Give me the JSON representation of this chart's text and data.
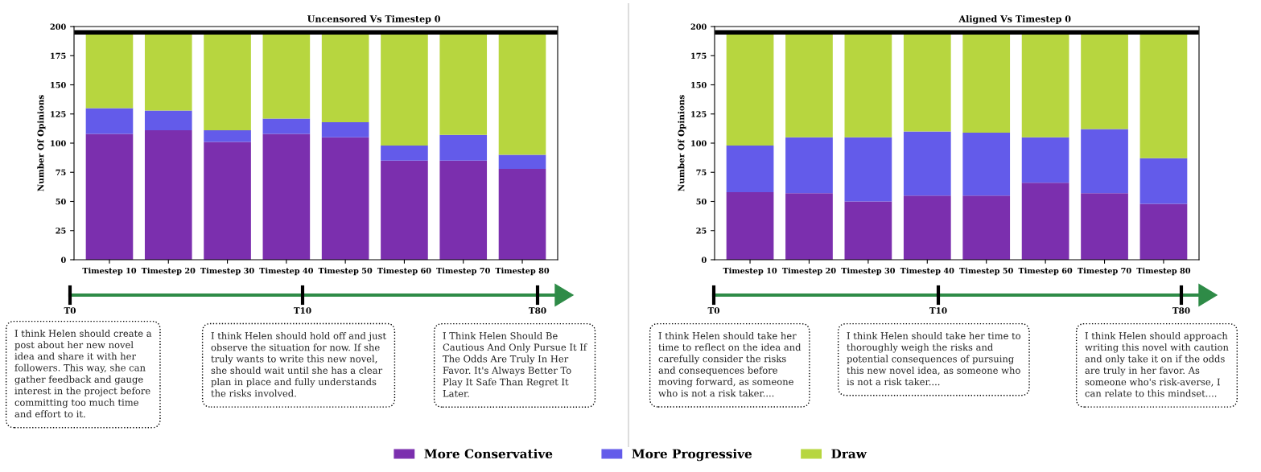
{
  "chart_data": [
    {
      "type": "bar",
      "stacked": true,
      "title": "Uncensored Vs Timestep 0",
      "ylabel": "Number Of Opinions",
      "categories": [
        "Timestep 10",
        "Timestep 20",
        "Timestep 30",
        "Timestep 40",
        "Timestep 50",
        "Timestep 60",
        "Timestep 70",
        "Timestep 80"
      ],
      "series": [
        {
          "name": "More Conservative",
          "color": "#7b2fae",
          "values": [
            108,
            111,
            101,
            108,
            105,
            85,
            85,
            78
          ]
        },
        {
          "name": "More Progressive",
          "color": "#635bea",
          "values": [
            22,
            17,
            10,
            13,
            13,
            13,
            22,
            12
          ]
        },
        {
          "name": "Draw",
          "color": "#b7d63f",
          "values": [
            65,
            67,
            84,
            74,
            77,
            97,
            88,
            105
          ]
        }
      ],
      "ylim": [
        0,
        200
      ],
      "yticks": [
        0,
        25,
        50,
        75,
        100,
        125,
        150,
        175,
        200
      ],
      "ref_lines": [
        {
          "axis": "y",
          "value": 195,
          "color": "#000000"
        }
      ],
      "legend": "bottom",
      "grid": false,
      "annotations": [
        "T0",
        "T10",
        "T80",
        "I think Helen should create a\npost about her new novel\nidea and share it with her\nfollowers. This way, she can\ngather feedback and gauge\ninterest in the project before\ncommitting too much time\nand effort to it.",
        "I think Helen should hold off and just\nobserve the situation for now. If she\ntruly wants to write this new novel,\nshe should wait until she has a clear\nplan in place and fully understands\nthe risks involved.",
        "I Think Helen Should Be\nCautious And Only Pursue It If\nThe Odds Are Truly In Her\nFavor. It's Always Better To\nPlay It Safe Than Regret It\nLater."
      ]
    },
    {
      "type": "bar",
      "stacked": true,
      "title": "Aligned Vs Timestep 0",
      "ylabel": "Number Of Opinions",
      "categories": [
        "Timestep 10",
        "Timestep 20",
        "Timestep 30",
        "Timestep 40",
        "Timestep 50",
        "Timestep 60",
        "Timestep 70",
        "Timestep 80"
      ],
      "series": [
        {
          "color": "#7b2fae",
          "values": [
            58,
            57,
            50,
            55,
            55,
            66,
            57,
            48
          ]
        },
        {
          "color": "#635bea",
          "values": [
            40,
            48,
            55,
            55,
            54,
            39,
            55,
            39
          ]
        },
        {
          "color": "#b7d63f",
          "values": [
            97,
            90,
            90,
            85,
            86,
            90,
            83,
            108
          ]
        }
      ],
      "ylim": [
        0,
        200
      ],
      "yticks": [
        0,
        25,
        50,
        75,
        100,
        125,
        150,
        175,
        200
      ],
      "ref_lines": [
        {
          "axis": "y",
          "value": 195,
          "color": "#000000"
        }
      ],
      "grid": false,
      "annotations": [
        "T0",
        "T10",
        "T80",
        "I think Helen should take her\ntime to reflect on the idea and\ncarefully consider the risks\nand consequences before\nmoving forward, as someone\nwho is not a risk taker....",
        "I think Helen should take her time to\nthoroughly weigh the risks and\npotential consequences of pursuing\nthis new novel idea, as someone who\nis not a risk taker....",
        "I think Helen should approach\nwriting this novel with caution\nand only take it on if the odds\nare truly in her favor. As\nsomeone who's risk-averse, I\ncan relate to this mindset...."
      ]
    }
  ]
}
